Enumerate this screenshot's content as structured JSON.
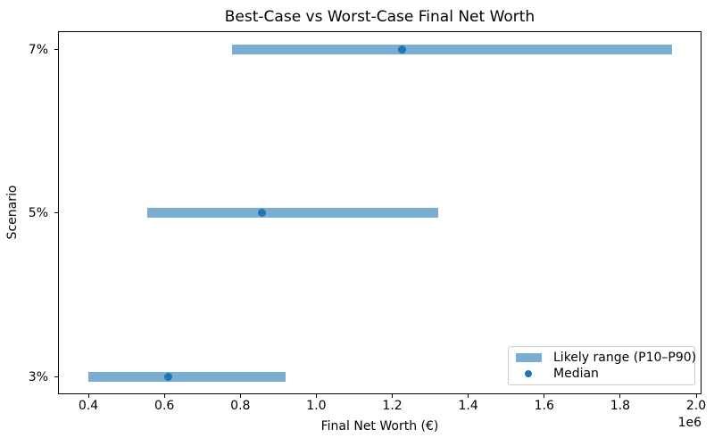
{
  "chart_data": {
    "type": "bar",
    "orientation": "horizontal",
    "title": "Best-Case vs Worst-Case Final Net Worth",
    "xlabel": "Final Net Worth (€)",
    "ylabel": "Scenario",
    "axis_offset_label": "1e6",
    "categories": [
      "7%",
      "5%",
      "3%"
    ],
    "rows": [
      {
        "scenario": "7%",
        "p10": 778000,
        "median": 1225000,
        "p90": 1936000
      },
      {
        "scenario": "5%",
        "p10": 555000,
        "median": 858000,
        "p90": 1320000
      },
      {
        "scenario": "3%",
        "p10": 400000,
        "median": 610000,
        "p90": 920000
      }
    ],
    "xlim": [
      320000,
      2014000
    ],
    "xticks": {
      "values": [
        400000,
        600000,
        800000,
        1000000,
        1200000,
        1400000,
        1600000,
        1800000,
        2000000
      ],
      "labels": [
        "0.4",
        "0.6",
        "0.8",
        "1.0",
        "1.2",
        "1.4",
        "1.6",
        "1.8",
        "2.0"
      ]
    },
    "grid": false,
    "legend": {
      "position": "lower right",
      "items": [
        {
          "label": "Likely range (P10–P90)",
          "marker": "patch"
        },
        {
          "label": "Median",
          "marker": "dot"
        }
      ]
    },
    "colors": {
      "range_bar": "#79add2",
      "median_dot": "#1f77b4",
      "text": "#000000",
      "legend_border": "#cccccc"
    }
  }
}
